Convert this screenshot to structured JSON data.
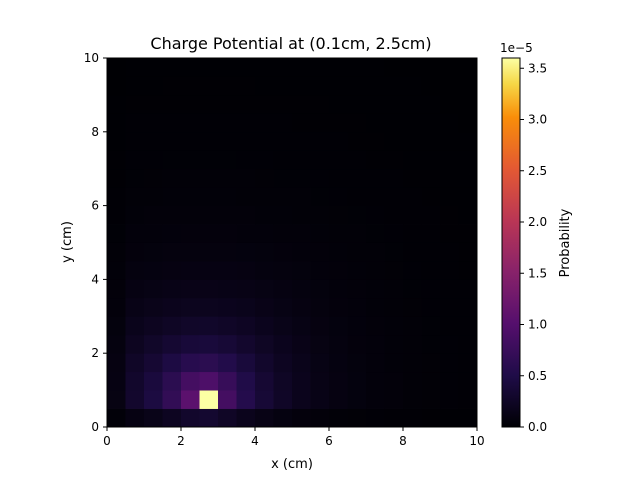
{
  "chart_data": {
    "type": "heatmap",
    "title": "Charge Potential at (0.1cm, 2.5cm)",
    "xlabel": "x (cm)",
    "ylabel": "y (cm)",
    "xlim": [
      0,
      10
    ],
    "ylim": [
      0,
      10
    ],
    "x_ticks": [
      "0",
      "2",
      "4",
      "6",
      "8",
      "10"
    ],
    "y_ticks": [
      "0",
      "2",
      "4",
      "6",
      "8",
      "10"
    ],
    "grid_size": 20,
    "peak_cell": {
      "x_center": 2.625,
      "y_center": 0.75,
      "value": 3.6e-05
    },
    "colormap": "inferno",
    "colorbar": {
      "label": "Probability",
      "exponent_label": "1e−5",
      "min": 0.0,
      "max": 3.6e-05,
      "ticks": [
        "0.0",
        "0.5",
        "1.0",
        "1.5",
        "2.0",
        "2.5",
        "3.0",
        "3.5"
      ]
    },
    "grid": false
  }
}
